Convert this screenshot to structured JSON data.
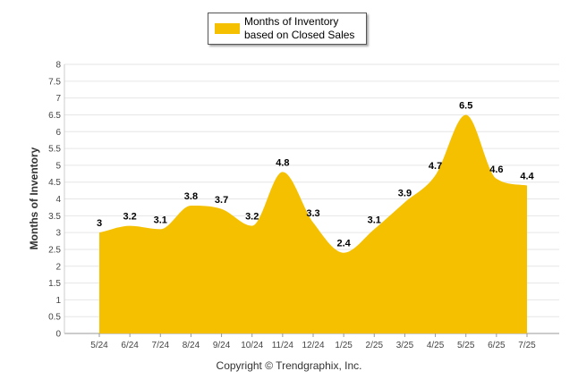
{
  "chart_data": {
    "type": "area",
    "categories": [
      "5/24",
      "6/24",
      "7/24",
      "8/24",
      "9/24",
      "10/24",
      "11/24",
      "12/24",
      "1/25",
      "2/25",
      "3/25",
      "4/25",
      "5/25",
      "6/25",
      "7/25"
    ],
    "series": [
      {
        "name": "Months of Inventory based on Closed Sales",
        "values": [
          3,
          3.2,
          3.1,
          3.8,
          3.7,
          3.2,
          4.8,
          3.3,
          2.4,
          3.1,
          3.9,
          4.7,
          6.5,
          4.6,
          4.4
        ],
        "color": "#f5c000"
      }
    ],
    "data_labels": [
      "3",
      "3.2",
      "3.1",
      "3.8",
      "3.7",
      "3.2",
      "4.8",
      "3.3",
      "2.4",
      "3.1",
      "3.9",
      "4.7",
      "6.5",
      "4.6",
      "4.4"
    ],
    "yticks": [
      "0",
      "0.5",
      "1",
      "1.5",
      "2",
      "2.5",
      "3",
      "3.5",
      "4",
      "4.5",
      "5",
      "5.5",
      "6",
      "6.5",
      "7",
      "7.5",
      "8"
    ],
    "ylim": [
      0,
      8
    ],
    "ylabel": "Months of Inventory",
    "xlabel": "",
    "grid": true,
    "legend_position": "top-center"
  },
  "legend": {
    "label": "Months of Inventory based on Closed Sales"
  },
  "footer": {
    "copyright": "Copyright © Trendgraphix, Inc."
  }
}
